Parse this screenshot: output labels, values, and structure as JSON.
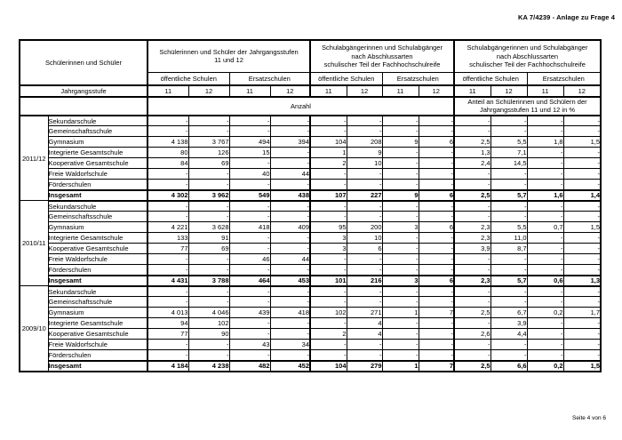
{
  "page": {
    "doc_ref": "KA 7/4239 - Anlage zu Frage 4",
    "footer": "Seite 4 von 6"
  },
  "table": {
    "corner_label": "Schülerinnen und Schüler",
    "row_header_label": "Jahrgangsstufe",
    "groups": [
      {
        "title": "Schülerinnen und Schüler der Jahrgangsstufen\n11 und 12"
      },
      {
        "title": "Schulabgängerinnen und Schulabgänger\nnach Abschlussarten\nschulischer Teil der Fachhochschulreife"
      },
      {
        "title": "Schulabgängerinnen und Schulabgänger\nnach Abschlussarten\nschulischer Teil der Fachhochschulreife"
      }
    ],
    "subgroup_labels": [
      "öffentliche Schulen",
      "Ersatzschulen"
    ],
    "grade_labels": [
      "11",
      "12"
    ],
    "measures": {
      "anzahl": "Anzahl",
      "anteil": "Anteil an Schülerinnen und Schülern der\nJahrgangsstufen 11 und 12 in %"
    },
    "blocks": [
      {
        "year": "2011/12",
        "rows": [
          {
            "school": "Sekundarschule",
            "bold": false,
            "values": [
              "-",
              "-",
              "-",
              "-",
              "-",
              "-",
              "-",
              "-",
              "-",
              "-",
              "-",
              "-"
            ]
          },
          {
            "school": "Gemeinschaftsschule",
            "bold": false,
            "values": [
              "-",
              "-",
              "-",
              "-",
              "-",
              "-",
              "-",
              "-",
              "-",
              "-",
              "-",
              "-"
            ]
          },
          {
            "school": "Gymnasium",
            "bold": false,
            "values": [
              "4 138",
              "3 767",
              "494",
              "394",
              "104",
              "208",
              "9",
              "6",
              "2,5",
              "5,5",
              "1,8",
              "1,5"
            ]
          },
          {
            "school": "Integrierte Gesamtschule",
            "bold": false,
            "values": [
              "80",
              "126",
              "15",
              "-",
              "1",
              "9",
              "-",
              "-",
              "1,3",
              "7,1",
              "-",
              "-"
            ]
          },
          {
            "school": "Kooperative Gesamtschule",
            "bold": false,
            "values": [
              "84",
              "69",
              "-",
              "-",
              "2",
              "10",
              "-",
              "-",
              "2,4",
              "14,5",
              "-",
              "-"
            ]
          },
          {
            "school": "Freie Waldorfschule",
            "bold": false,
            "values": [
              "-",
              "-",
              "40",
              "44",
              "-",
              "-",
              "-",
              "-",
              "-",
              "-",
              "-",
              "-"
            ]
          },
          {
            "school": "Förderschulen",
            "bold": false,
            "values": [
              "-",
              "-",
              "-",
              "-",
              "-",
              "-",
              "-",
              "-",
              "-",
              "-",
              "-",
              "-"
            ]
          },
          {
            "school": "Insgesamt",
            "bold": true,
            "values": [
              "4 302",
              "3 962",
              "549",
              "438",
              "107",
              "227",
              "9",
              "6",
              "2,5",
              "5,7",
              "1,6",
              "1,4"
            ]
          }
        ]
      },
      {
        "year": "2010/11",
        "rows": [
          {
            "school": "Sekundarschule",
            "bold": false,
            "values": [
              "-",
              "-",
              "-",
              "-",
              "-",
              "-",
              "-",
              "-",
              "-",
              "-",
              "-",
              "-"
            ]
          },
          {
            "school": "Gemeinschaftsschule",
            "bold": false,
            "values": [
              "-",
              "-",
              "-",
              "-",
              "-",
              "-",
              "-",
              "-",
              "-",
              "-",
              "-",
              "-"
            ]
          },
          {
            "school": "Gymnasium",
            "bold": false,
            "values": [
              "4 221",
              "3 628",
              "418",
              "409",
              "95",
              "200",
              "3",
              "6",
              "2,3",
              "5,5",
              "0,7",
              "1,5"
            ]
          },
          {
            "school": "Integrierte Gesamtschule",
            "bold": false,
            "values": [
              "133",
              "91",
              "-",
              "-",
              "3",
              "10",
              "-",
              "-",
              "2,3",
              "11,0",
              "-",
              "-"
            ]
          },
          {
            "school": "Kooperative Gesamtschule",
            "bold": false,
            "values": [
              "77",
              "69",
              "-",
              "-",
              "3",
              "6",
              "-",
              "-",
              "3,9",
              "8,7",
              "-",
              "-"
            ]
          },
          {
            "school": "Freie Waldorfschule",
            "bold": false,
            "values": [
              "-",
              "-",
              "46",
              "44",
              "-",
              "-",
              "-",
              "-",
              "-",
              "-",
              "-",
              "-"
            ]
          },
          {
            "school": "Förderschulen",
            "bold": false,
            "values": [
              "-",
              "-",
              "-",
              "-",
              "-",
              "-",
              "-",
              "-",
              "-",
              "-",
              "-",
              "-"
            ]
          },
          {
            "school": "Insgesamt",
            "bold": true,
            "values": [
              "4 431",
              "3 788",
              "464",
              "453",
              "101",
              "216",
              "3",
              "6",
              "2,3",
              "5,7",
              "0,6",
              "1,3"
            ]
          }
        ]
      },
      {
        "year": "2009/10",
        "rows": [
          {
            "school": "Sekundarschule",
            "bold": false,
            "values": [
              "-",
              "-",
              "-",
              "-",
              "-",
              "-",
              "-",
              "-",
              "-",
              "-",
              "-",
              "-"
            ]
          },
          {
            "school": "Gemeinschaftsschule",
            "bold": false,
            "values": [
              "-",
              "-",
              "-",
              "-",
              "-",
              "-",
              "-",
              "-",
              "-",
              "-",
              "-",
              "-"
            ]
          },
          {
            "school": "Gymnasium",
            "bold": false,
            "values": [
              "4 013",
              "4 046",
              "439",
              "418",
              "102",
              "271",
              "1",
              "7",
              "2,5",
              "6,7",
              "0,2",
              "1,7"
            ]
          },
          {
            "school": "Integrierte Gesamtschule",
            "bold": false,
            "values": [
              "94",
              "102",
              "-",
              "-",
              "-",
              "4",
              "-",
              "-",
              "-",
              "3,9",
              "-",
              "-"
            ]
          },
          {
            "school": "Kooperative Gesamtschule",
            "bold": false,
            "values": [
              "77",
              "90",
              "-",
              "-",
              "2",
              "4",
              "-",
              "-",
              "2,6",
              "4,4",
              "-",
              "-"
            ]
          },
          {
            "school": "Freie Waldorfschule",
            "bold": false,
            "values": [
              "-",
              "-",
              "43",
              "34",
              "-",
              "-",
              "-",
              "-",
              "-",
              "-",
              "-",
              "-"
            ]
          },
          {
            "school": "Förderschulen",
            "bold": false,
            "values": [
              "-",
              "-",
              "-",
              "-",
              "-",
              "-",
              "-",
              "-",
              "-",
              "-",
              "-",
              "-"
            ]
          },
          {
            "school": "Insgesamt",
            "bold": true,
            "values": [
              "4 184",
              "4 238",
              "482",
              "452",
              "104",
              "279",
              "1",
              "7",
              "2,5",
              "6,6",
              "0,2",
              "1,5"
            ]
          }
        ]
      }
    ]
  }
}
